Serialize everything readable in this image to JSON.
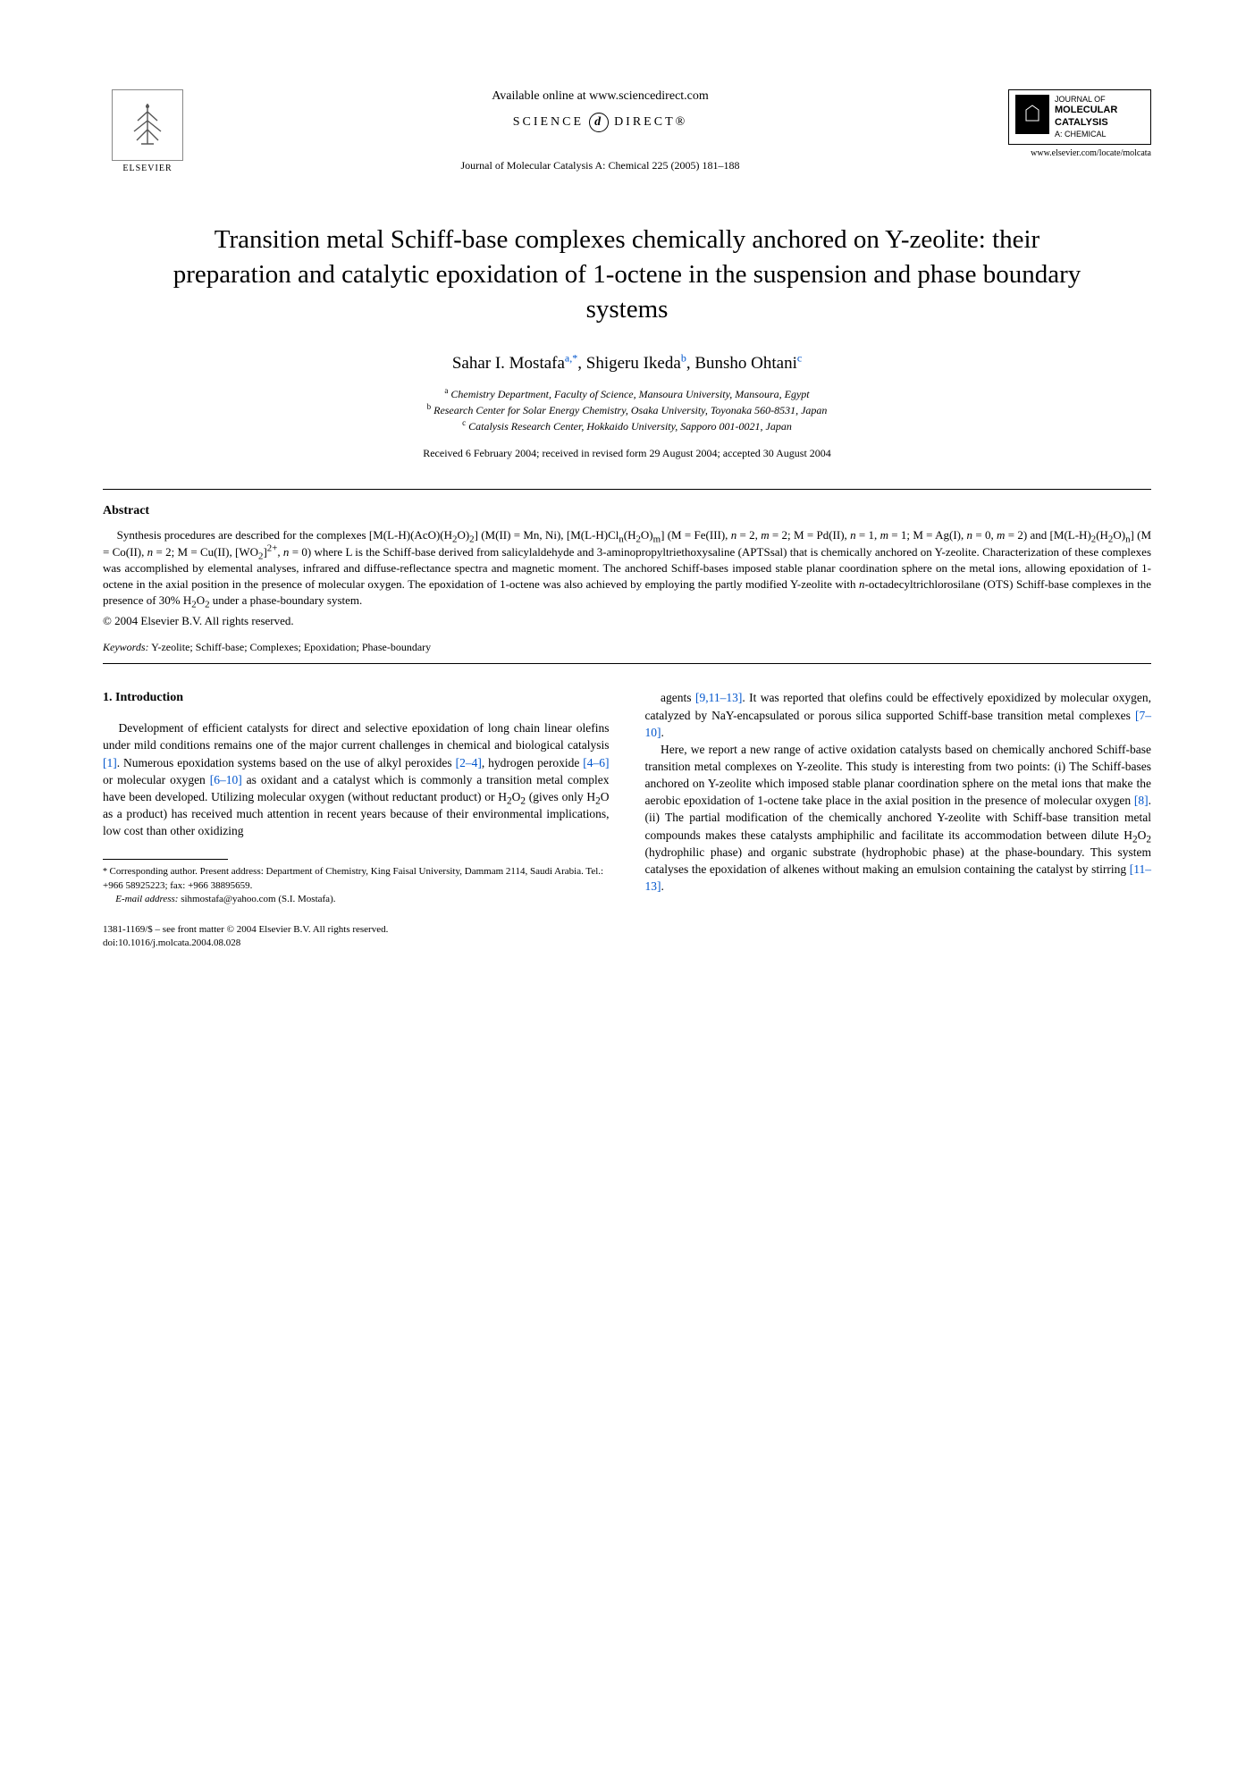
{
  "header": {
    "elsevier_label": "ELSEVIER",
    "available_online": "Available online at www.sciencedirect.com",
    "science_direct_left": "SCIENCE",
    "science_direct_right": "DIRECT®",
    "journal_ref": "Journal of Molecular Catalysis A: Chemical 225 (2005) 181–188",
    "journal_badge": {
      "line1": "JOURNAL OF",
      "line2": "MOLECULAR",
      "line3": "CATALYSIS",
      "line4": "A: CHEMICAL"
    },
    "journal_url": "www.elsevier.com/locate/molcata"
  },
  "title": "Transition metal Schiff-base complexes chemically anchored on Y-zeolite: their preparation and catalytic epoxidation of 1-octene in the suspension and phase boundary systems",
  "authors_html": "Sahar I. Mostafa<sup>a,*</sup>, Shigeru Ikeda<sup>b</sup>, Bunsho Ohtani<sup>c</sup>",
  "affiliations": {
    "a": "Chemistry Department, Faculty of Science, Mansoura University, Mansoura, Egypt",
    "b": "Research Center for Solar Energy Chemistry, Osaka University, Toyonaka 560-8531, Japan",
    "c": "Catalysis Research Center, Hokkaido University, Sapporo 001-0021, Japan"
  },
  "dates": "Received 6 February 2004; received in revised form 29 August 2004; accepted 30 August 2004",
  "abstract_heading": "Abstract",
  "abstract_html": "Synthesis procedures are described for the complexes [M(L-H)(AcO)(H<sub>2</sub>O)<sub>2</sub>] (M(II) = Mn, Ni), [M(L-H)Cl<sub>n</sub>(H<sub>2</sub>O)<sub>m</sub>] (M = Fe(III), <i>n</i> = 2, <i>m</i> = 2; M = Pd(II), <i>n</i> = 1, <i>m</i> = 1; M = Ag(I), <i>n</i> = 0, <i>m</i> = 2) and [M(L-H)<sub>2</sub>(H<sub>2</sub>O)<sub>n</sub>] (M = Co(II), <i>n</i> = 2; M = Cu(II), [WO<sub>2</sub>]<sup>2+</sup>, <i>n</i> = 0) where L is the Schiff-base derived from salicylaldehyde and 3-aminopropyltriethoxysaline (APTSsal) that is chemically anchored on Y-zeolite. Characterization of these complexes was accomplished by elemental analyses, infrared and diffuse-reflectance spectra and magnetic moment. The anchored Schiff-bases imposed stable planar coordination sphere on the metal ions, allowing epoxidation of 1-octene in the axial position in the presence of molecular oxygen. The epoxidation of 1-octene was also achieved by employing the partly modified Y-zeolite with <i>n</i>-octadecyltrichlorosilane (OTS) Schiff-base complexes in the presence of 30% H<sub>2</sub>O<sub>2</sub> under a phase-boundary system.",
  "copyright": "© 2004 Elsevier B.V. All rights reserved.",
  "keywords_label": "Keywords:",
  "keywords_text": " Y-zeolite; Schiff-base; Complexes; Epoxidation; Phase-boundary",
  "intro_heading": "1. Introduction",
  "intro_col1_p1_html": "Development of efficient catalysts for direct and selective epoxidation of long chain linear olefins under mild conditions remains one of the major current challenges in chemical and biological catalysis <span class=\"ref-link\">[1]</span>. Numerous epoxidation systems based on the use of alkyl peroxides <span class=\"ref-link\">[2–4]</span>, hydrogen peroxide <span class=\"ref-link\">[4–6]</span> or molecular oxygen <span class=\"ref-link\">[6–10]</span> as oxidant and a catalyst which is commonly a transition metal complex have been developed. Utilizing molecular oxygen (without reductant product) or H<sub>2</sub>O<sub>2</sub> (gives only H<sub>2</sub>O as a product) has received much attention in recent years because of their environmental implications, low cost than other oxidizing",
  "intro_col2_p1_html": "agents <span class=\"ref-link\">[9,11–13]</span>. It was reported that olefins could be effectively epoxidized by molecular oxygen, catalyzed by NaY-encapsulated or porous silica supported Schiff-base transition metal complexes <span class=\"ref-link\">[7–10]</span>.",
  "intro_col2_p2_html": "Here, we report a new range of active oxidation catalysts based on chemically anchored Schiff-base transition metal complexes on Y-zeolite. This study is interesting from two points: (i) The Schiff-bases anchored on Y-zeolite which imposed stable planar coordination sphere on the metal ions that make the aerobic epoxidation of 1-octene take place in the axial position in the presence of molecular oxygen <span class=\"ref-link\">[8]</span>. (ii) The partial modification of the chemically anchored Y-zeolite with Schiff-base transition metal compounds makes these catalysts amphiphilic and facilitate its accommodation between dilute H<sub>2</sub>O<sub>2</sub> (hydrophilic phase) and organic substrate (hydrophobic phase) at the phase-boundary. This system catalyses the epoxidation of alkenes without making an emulsion containing the catalyst by stirring <span class=\"ref-link\">[11–13]</span>.",
  "footnote": {
    "corresponding_html": "Corresponding author. Present address: Department of Chemistry, King Faisal University, Dammam 2114, Saudi Arabia. Tel.: +966 58925223; fax: +966 38895659.",
    "email_label": "E-mail address:",
    "email": " sihmostafa@yahoo.com (S.I. Mostafa)."
  },
  "doi": {
    "line1": "1381-1169/$ – see front matter © 2004 Elsevier B.V. All rights reserved.",
    "line2": "doi:10.1016/j.molcata.2004.08.028"
  },
  "colors": {
    "link": "#0055cc",
    "text": "#000000",
    "background": "#ffffff"
  }
}
